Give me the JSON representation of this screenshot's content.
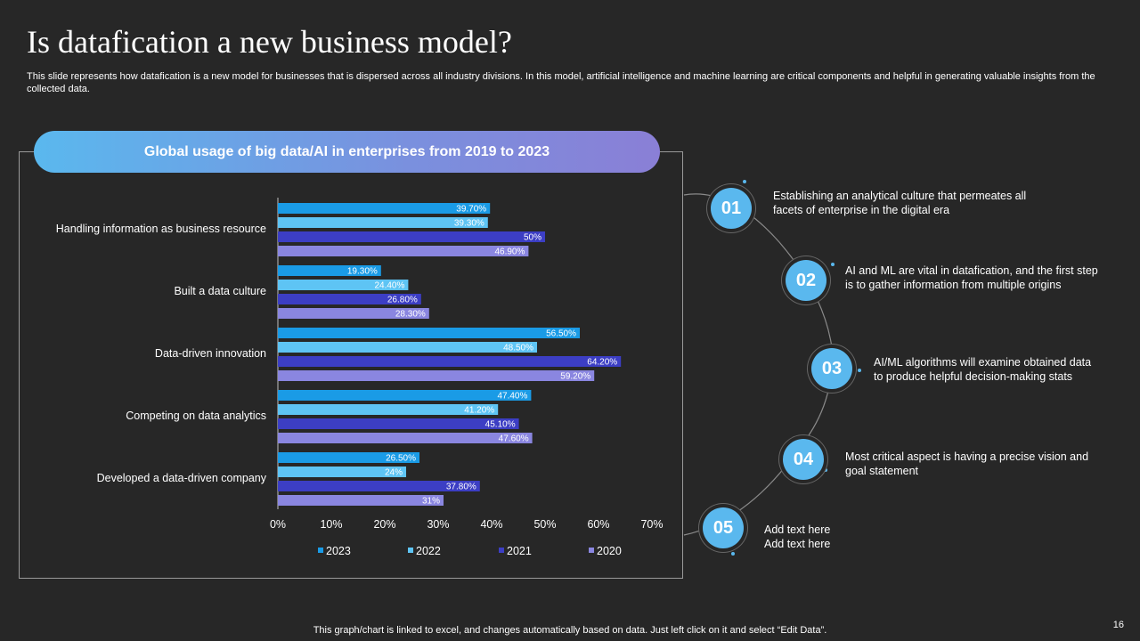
{
  "slide": {
    "title": "Is datafication a new business model?",
    "subtitle": "This slide represents how datafication is a new model for businesses that is dispersed across all industry divisions. In this model, artificial intelligence and machine learning are critical components and helpful in generating valuable insights from the collected data.",
    "footer": "This graph/chart is linked to excel, and changes automatically based on data. Just left click on it and select “Edit Data”.",
    "page_number": "16"
  },
  "chart_data": {
    "type": "bar",
    "orientation": "horizontal",
    "title": "Global usage of big data/AI in enterprises from 2019 to 2023",
    "categories": [
      "Handling information as business resource",
      "Built a data culture",
      "Data-driven innovation",
      "Competing on data analytics",
      "Developed a data-driven company"
    ],
    "series": [
      {
        "name": "2023",
        "color": "#1a9be6",
        "values": [
          39.7,
          19.3,
          56.5,
          47.4,
          26.5
        ],
        "labels": [
          "39.70%",
          "19.30%",
          "56.50%",
          "47.40%",
          "26.50%"
        ]
      },
      {
        "name": "2022",
        "color": "#5ec4f4",
        "values": [
          39.3,
          24.4,
          48.5,
          41.2,
          24
        ],
        "labels": [
          "39.30%",
          "24.40%",
          "48.50%",
          "41.20%",
          "24%"
        ]
      },
      {
        "name": "2021",
        "color": "#3c3ec4",
        "values": [
          50,
          26.8,
          64.2,
          45.1,
          37.8
        ],
        "labels": [
          "50%",
          "26.80%",
          "64.20%",
          "45.10%",
          "37.80%"
        ]
      },
      {
        "name": "2020",
        "color": "#8a86e0",
        "values": [
          46.9,
          28.3,
          59.2,
          47.6,
          31
        ],
        "labels": [
          "46.90%",
          "28.30%",
          "59.20%",
          "47.60%",
          "31%"
        ]
      }
    ],
    "xlim": [
      0,
      70
    ],
    "xticks": [
      "0%",
      "10%",
      "20%",
      "30%",
      "40%",
      "50%",
      "60%",
      "70%"
    ],
    "legend_position": "bottom",
    "grid": false
  },
  "steps": [
    {
      "number": "01",
      "lines": [
        "Establishing an analytical culture that permeates all",
        "facets of enterprise in the digital era"
      ]
    },
    {
      "number": "02",
      "lines": [
        "AI and ML are vital in datafication, and the first step",
        "is to gather information from multiple origins"
      ]
    },
    {
      "number": "03",
      "lines": [
        "AI/ML algorithms will examine obtained data",
        "to produce helpful decision-making stats"
      ]
    },
    {
      "number": "04",
      "lines": [
        "Most critical aspect is having a precise vision and",
        "goal statement"
      ]
    },
    {
      "number": "05",
      "lines": [
        "Add text here",
        "Add text here"
      ]
    }
  ],
  "colors": {
    "background": "#272727",
    "accent": "#5ab8ee"
  }
}
